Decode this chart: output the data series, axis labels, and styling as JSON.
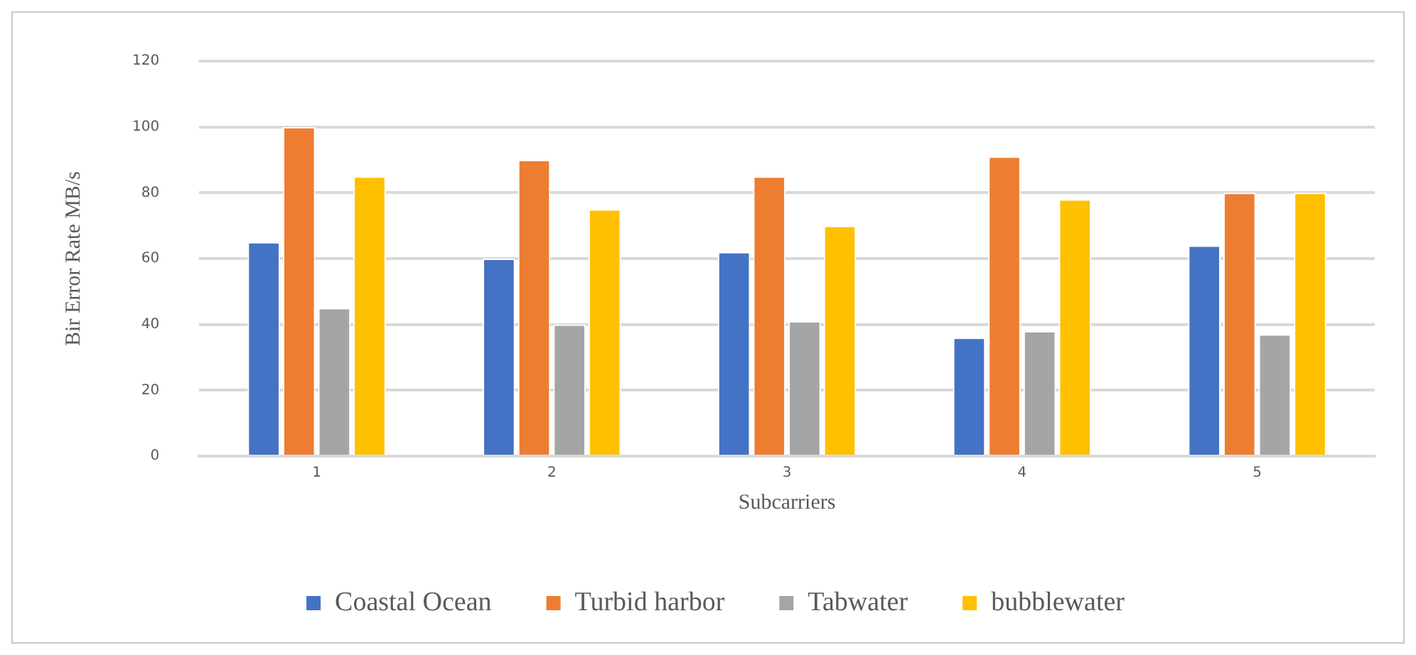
{
  "chart_data": {
    "type": "bar",
    "xlabel": "Subcarriers",
    "ylabel": "Bir Error Rate MB/s",
    "categories": [
      "1",
      "2",
      "3",
      "4",
      "5"
    ],
    "series": [
      {
        "name": "Coastal Ocean",
        "color": "#4472c4",
        "values": [
          65,
          60,
          62,
          36,
          64
        ]
      },
      {
        "name": "Turbid harbor",
        "color": "#ed7d31",
        "values": [
          100,
          90,
          85,
          91,
          80
        ]
      },
      {
        "name": "Tabwater",
        "color": "#a5a5a5",
        "values": [
          45,
          40,
          41,
          38,
          37
        ]
      },
      {
        "name": "bubblewater",
        "color": "#ffc000",
        "values": [
          85,
          75,
          70,
          78,
          80
        ]
      }
    ],
    "ylim": [
      0,
      120
    ],
    "yticks": [
      0,
      20,
      40,
      60,
      80,
      100,
      120
    ],
    "grid": "y",
    "legend": "bottom"
  }
}
